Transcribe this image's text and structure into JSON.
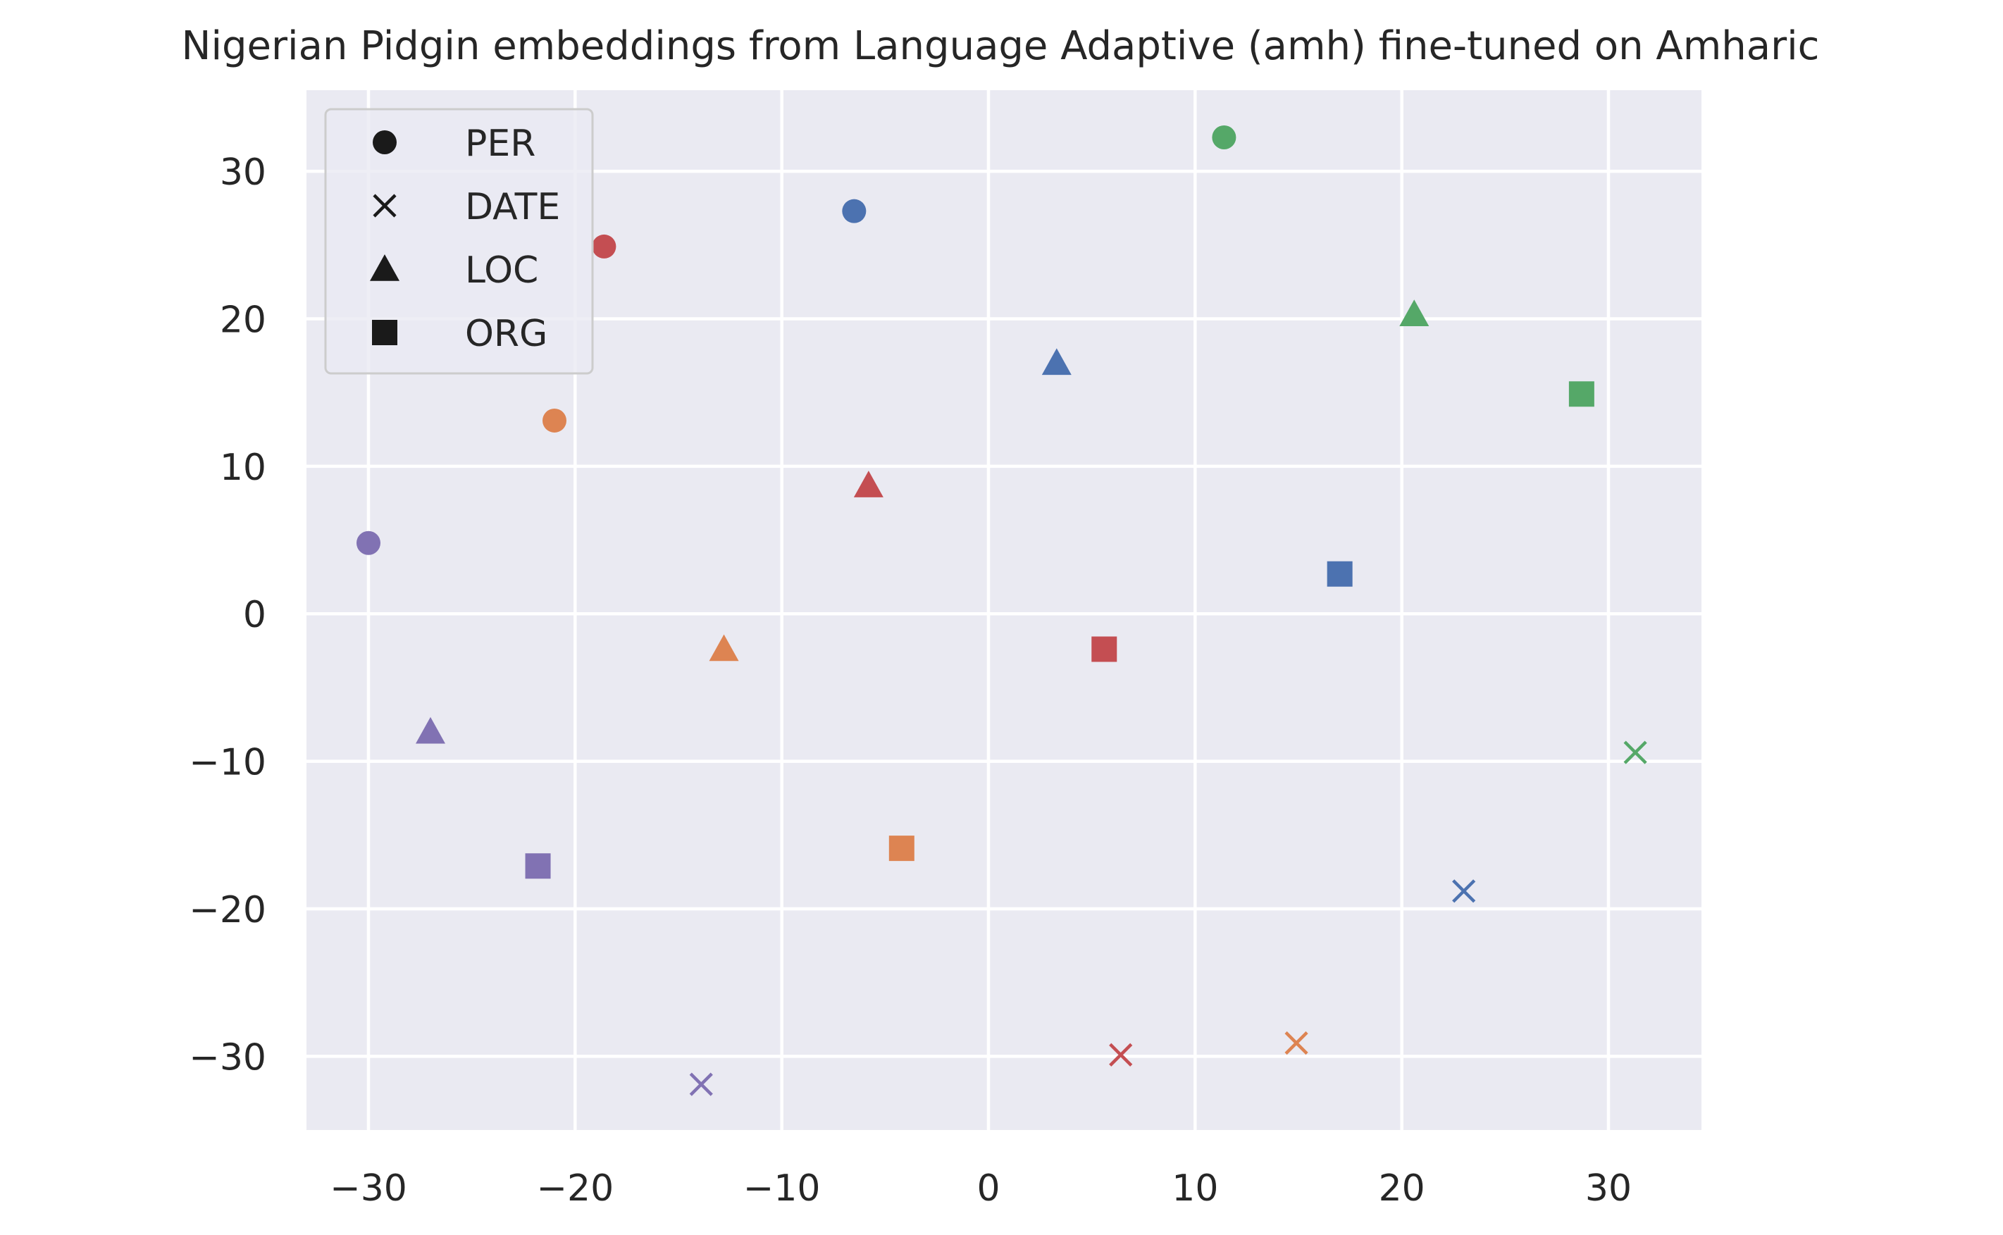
{
  "chart_data": {
    "type": "scatter",
    "title": "Nigerian Pidgin embeddings from Language Adaptive (amh) fine-tuned on Amharic",
    "xlabel": "",
    "ylabel": "",
    "xlim": [
      -33,
      34.5
    ],
    "ylim": [
      -35,
      35.5
    ],
    "xticks": [
      -30,
      -20,
      -10,
      0,
      10,
      20,
      30
    ],
    "yticks": [
      -30,
      -20,
      -10,
      0,
      10,
      20,
      30
    ],
    "xtick_labels": [
      "−30",
      "−20",
      "−10",
      "0",
      "10",
      "20",
      "30"
    ],
    "ytick_labels": [
      "−30",
      "−20",
      "−10",
      "0",
      "10",
      "20",
      "30"
    ],
    "grid": true,
    "background": "#eaeaf2",
    "legend": {
      "placement": "top-left",
      "entries": [
        {
          "label": "PER",
          "marker": "circle"
        },
        {
          "label": "DATE",
          "marker": "x"
        },
        {
          "label": "LOC",
          "marker": "triangle"
        },
        {
          "label": "ORG",
          "marker": "square"
        }
      ]
    },
    "points": [
      {
        "x": -6.5,
        "y": 27.3,
        "marker": "circle",
        "color": "#4c72b0"
      },
      {
        "x": 3.3,
        "y": 17.0,
        "marker": "triangle",
        "color": "#4c72b0"
      },
      {
        "x": 17.0,
        "y": 2.7,
        "marker": "square",
        "color": "#4c72b0"
      },
      {
        "x": 23.0,
        "y": -18.8,
        "marker": "x",
        "color": "#4c72b0"
      },
      {
        "x": -21.0,
        "y": 13.1,
        "marker": "circle",
        "color": "#dd8452"
      },
      {
        "x": -12.8,
        "y": -2.4,
        "marker": "triangle",
        "color": "#dd8452"
      },
      {
        "x": -4.2,
        "y": -15.9,
        "marker": "square",
        "color": "#dd8452"
      },
      {
        "x": 14.9,
        "y": -29.1,
        "marker": "x",
        "color": "#dd8452"
      },
      {
        "x": 11.4,
        "y": 32.3,
        "marker": "circle",
        "color": "#55a868"
      },
      {
        "x": 20.6,
        "y": 20.3,
        "marker": "triangle",
        "color": "#55a868"
      },
      {
        "x": 28.7,
        "y": 14.9,
        "marker": "square",
        "color": "#55a868"
      },
      {
        "x": 31.3,
        "y": -9.4,
        "marker": "x",
        "color": "#55a868"
      },
      {
        "x": -18.6,
        "y": 24.9,
        "marker": "circle",
        "color": "#c44e52"
      },
      {
        "x": -5.8,
        "y": 8.7,
        "marker": "triangle",
        "color": "#c44e52"
      },
      {
        "x": 5.6,
        "y": -2.4,
        "marker": "square",
        "color": "#c44e52"
      },
      {
        "x": 6.4,
        "y": -29.9,
        "marker": "x",
        "color": "#c44e52"
      },
      {
        "x": -30.0,
        "y": 4.8,
        "marker": "circle",
        "color": "#8172b3"
      },
      {
        "x": -27.0,
        "y": -8.0,
        "marker": "triangle",
        "color": "#8172b3"
      },
      {
        "x": -21.8,
        "y": -17.1,
        "marker": "square",
        "color": "#8172b3"
      },
      {
        "x": -13.9,
        "y": -31.9,
        "marker": "x",
        "color": "#8172b3"
      }
    ]
  }
}
